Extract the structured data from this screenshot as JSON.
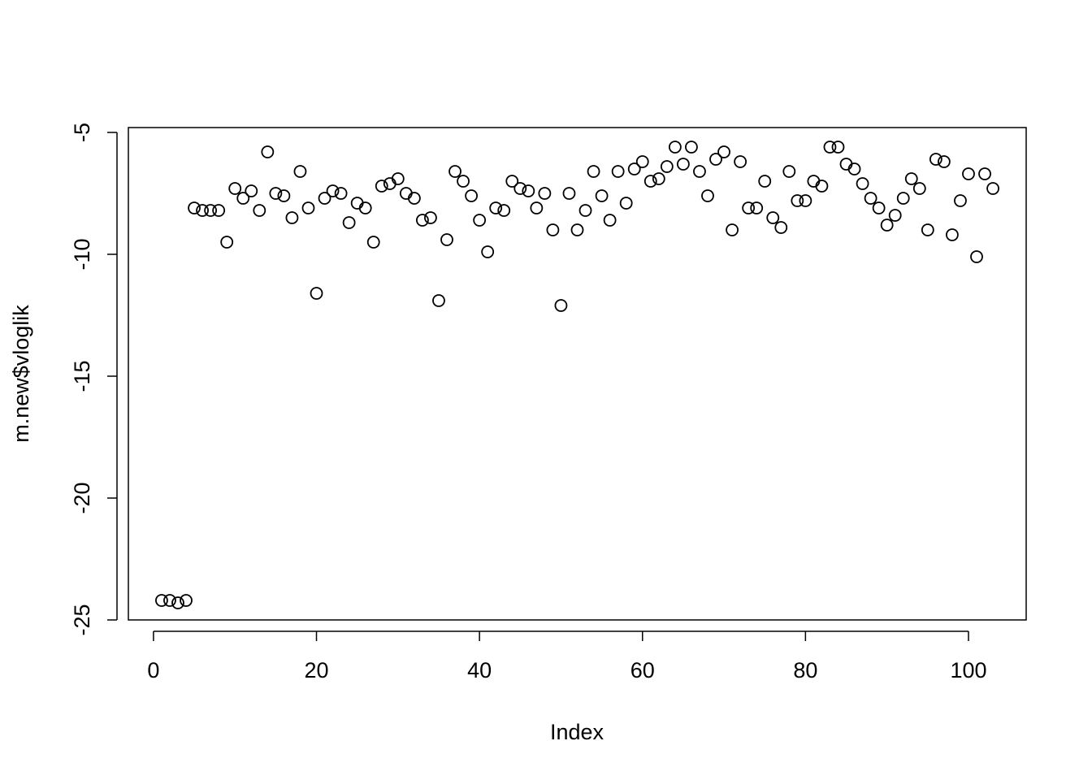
{
  "chart_data": {
    "type": "scatter",
    "x_label": "Index",
    "y_label": "m.new$vloglik",
    "x": [
      1,
      2,
      3,
      4,
      5,
      6,
      7,
      8,
      9,
      10,
      11,
      12,
      13,
      14,
      15,
      16,
      17,
      18,
      19,
      20,
      21,
      22,
      23,
      24,
      25,
      26,
      27,
      28,
      29,
      30,
      31,
      32,
      33,
      34,
      35,
      36,
      37,
      38,
      39,
      40,
      41,
      42,
      43,
      44,
      45,
      46,
      47,
      48,
      49,
      50,
      51,
      52,
      53,
      54,
      55,
      56,
      57,
      58,
      59,
      60,
      61,
      62,
      63,
      64,
      65,
      66,
      67,
      68,
      69,
      70,
      71,
      72,
      73,
      74,
      75,
      76,
      77,
      78,
      79,
      80,
      81,
      82,
      83,
      84,
      85,
      86,
      87,
      88,
      89,
      90,
      91,
      92,
      93,
      94,
      95,
      96,
      97,
      98,
      99,
      100,
      101,
      102,
      103
    ],
    "values": [
      -24.2,
      -24.2,
      -24.3,
      -24.2,
      -8.1,
      -8.2,
      -8.2,
      -8.2,
      -9.5,
      -7.3,
      -7.7,
      -7.4,
      -8.2,
      -5.8,
      -7.5,
      -7.6,
      -8.5,
      -6.6,
      -8.1,
      -11.6,
      -7.7,
      -7.4,
      -7.5,
      -8.7,
      -7.9,
      -8.1,
      -9.5,
      -7.2,
      -7.1,
      -6.9,
      -7.5,
      -7.7,
      -8.6,
      -8.5,
      -11.9,
      -9.4,
      -6.6,
      -7.0,
      -7.6,
      -8.6,
      -9.9,
      -8.1,
      -8.2,
      -7.0,
      -7.3,
      -7.4,
      -8.1,
      -7.5,
      -9.0,
      -12.1,
      -7.5,
      -9.0,
      -8.2,
      -6.6,
      -7.6,
      -8.6,
      -6.6,
      -7.9,
      -6.5,
      -6.2,
      -7.0,
      -6.9,
      -6.4,
      -5.6,
      -6.3,
      -5.6,
      -6.6,
      -7.6,
      -6.1,
      -5.8,
      -9.0,
      -6.2,
      -8.1,
      -8.1,
      -7.0,
      -8.5,
      -8.9,
      -6.6,
      -7.8,
      -7.8,
      -7.0,
      -7.2,
      -5.6,
      -5.6,
      -6.3,
      -6.5,
      -7.1,
      -7.7,
      -8.1,
      -8.8,
      -8.4,
      -7.7,
      -6.9,
      -7.3,
      -9.0,
      -6.1,
      -6.2,
      -9.2,
      -7.8,
      -6.7,
      -10.1,
      -6.7,
      -7.3
    ],
    "color": "#000000",
    "xlim": [
      -3.08,
      107.08
    ],
    "xticks": [
      0,
      20,
      40,
      60,
      80,
      100
    ],
    "ylim": [
      -25.0,
      -4.8
    ],
    "yticks": [
      -25,
      -20,
      -15,
      -10,
      -5
    ]
  }
}
